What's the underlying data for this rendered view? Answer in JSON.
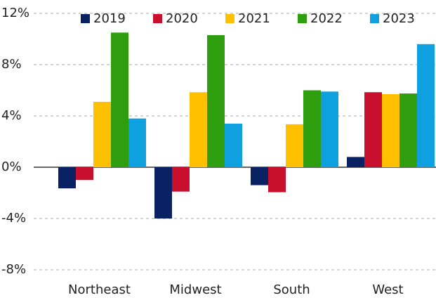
{
  "chart_data": {
    "type": "bar",
    "categories": [
      "Northeast",
      "Midwest",
      "South",
      "West"
    ],
    "series": [
      {
        "name": "2019",
        "color": "#0a2264",
        "values": [
          -1.65,
          -4.0,
          -1.4,
          0.8
        ]
      },
      {
        "name": "2020",
        "color": "#c8102e",
        "values": [
          -1.0,
          -1.9,
          -1.95,
          5.85
        ]
      },
      {
        "name": "2021",
        "color": "#ffc000",
        "values": [
          5.1,
          5.85,
          3.35,
          5.7
        ]
      },
      {
        "name": "2022",
        "color": "#2e9e0e",
        "values": [
          10.5,
          10.3,
          6.0,
          5.75
        ]
      },
      {
        "name": "2023",
        "color": "#0fa0e0",
        "values": [
          3.8,
          3.4,
          5.9,
          9.6
        ]
      }
    ],
    "ylim": [
      -8,
      12
    ],
    "yticks": [
      {
        "value": -8,
        "label": "-8%"
      },
      {
        "value": -4,
        "label": "-4%"
      },
      {
        "value": 0,
        "label": "0%"
      },
      {
        "value": 4,
        "label": "4%"
      },
      {
        "value": 8,
        "label": "8%"
      },
      {
        "value": 12,
        "label": "12%"
      }
    ],
    "grid": true,
    "legend": "top"
  }
}
